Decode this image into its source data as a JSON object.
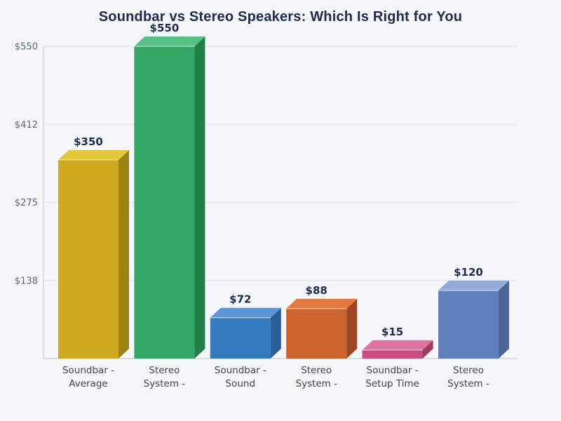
{
  "background": "#f4f6fa",
  "title": "Soundbar vs Stereo Speakers: Which Is Right for You",
  "chart_data": {
    "type": "bar",
    "style": "3d-column",
    "title": "Soundbar vs Stereo Speakers: Which Is Right for You",
    "categories": [
      [
        "Soundbar -",
        "Average"
      ],
      [
        "Stereo",
        "System -"
      ],
      [
        "Soundbar -",
        "Sound"
      ],
      [
        "Stereo",
        "System -"
      ],
      [
        "Soundbar -",
        "Setup Time"
      ],
      [
        "Stereo",
        "System -"
      ]
    ],
    "values": [
      350,
      550,
      72,
      88,
      15,
      120
    ],
    "value_labels": [
      "$350",
      "$550",
      "$72",
      "$88",
      "$15",
      "$120"
    ],
    "bar_colors": [
      {
        "front": "#cfa91f",
        "top": "#e3c63a",
        "side": "#9e8113"
      },
      {
        "front": "#34a765",
        "top": "#57c084",
        "side": "#1f7f45"
      },
      {
        "front": "#3579bf",
        "top": "#5b97d6",
        "side": "#2a5f9c"
      },
      {
        "front": "#cd6430",
        "top": "#e2793f",
        "side": "#9c4521"
      },
      {
        "front": "#cb4c7f",
        "top": "#dc73a1",
        "side": "#9d3b62"
      },
      {
        "front": "#5f80bd",
        "top": "#92abd9",
        "side": "#4c6496"
      }
    ],
    "ylim": [
      0,
      550
    ],
    "y_ticks": [
      {
        "value": 137.5,
        "label": "$138"
      },
      {
        "value": 275,
        "label": "$275"
      },
      {
        "value": 412.5,
        "label": "$412"
      },
      {
        "value": 550,
        "label": "$550"
      }
    ],
    "xlabel": "",
    "ylabel": "",
    "grid": true,
    "legend": false,
    "colors": {
      "title_text": "#1e2b4d",
      "value_label_text": "#1e2b4d",
      "y_tick_text": "#5d6779",
      "x_tick_text": "#3e4450",
      "gridline": "#dde1e7",
      "axis_line": "#c7ccd5",
      "edge_highlight": "rgba(255,255,255,0.5)"
    }
  }
}
